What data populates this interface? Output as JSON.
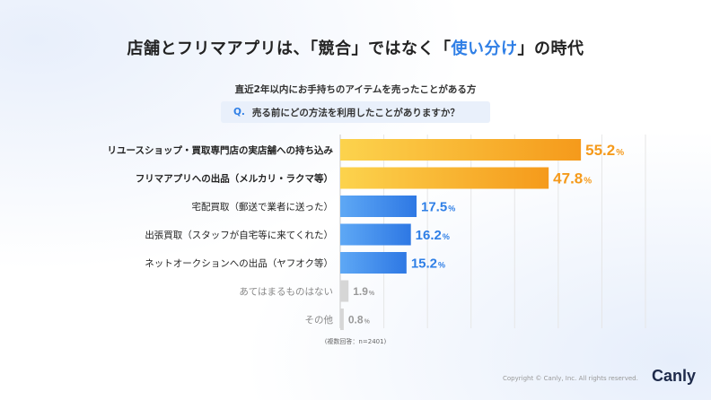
{
  "header": {
    "title_pre": "店舗とフリマアプリは、「競合」ではなく「",
    "title_highlight": "使い分け",
    "title_post": "」の時代",
    "subtitle": "直近2年以内にお手持ちのアイテムを売ったことがある方",
    "question_prefix": "Q.",
    "question": "売る前にどの方法を利用したことがありますか？"
  },
  "chart_data": {
    "type": "bar",
    "orientation": "horizontal",
    "categories": [
      "リユースショップ・買取専門店の実店舗への持ち込み",
      "フリマアプリへの出品（メルカリ・ラクマ等）",
      "宅配買取（郵送で業者に送った）",
      "出張買取（スタッフが自宅等に来てくれた）",
      "ネットオークションへの出品（ヤフオク等）",
      "あてはまるものはない",
      "その他"
    ],
    "values": [
      55.2,
      47.8,
      17.5,
      16.2,
      15.2,
      1.9,
      0.8
    ],
    "value_labels": [
      "55.2",
      "47.8",
      "17.5",
      "16.2",
      "15.2",
      "1.9",
      "0.8"
    ],
    "unit": "%",
    "xlim": [
      0,
      70
    ],
    "grid": true,
    "colors": {
      "top_gradient_start": "#fcd34d",
      "top_gradient_end": "#f59a1b",
      "top_label": "#f59a1b",
      "mid_gradient_start": "#5ea8f5",
      "mid_gradient_end": "#2e78e4",
      "mid_label": "#2f7fe6",
      "low_bar": "#d6d6d6",
      "low_label": "#999999"
    },
    "category_styles": [
      "top",
      "top",
      "mid",
      "mid",
      "mid",
      "low",
      "low"
    ]
  },
  "footer": {
    "note": "(複数回答：n=2401)",
    "copyright": "Copyright © Canly, Inc. All rights reserved.",
    "logo": "Canly"
  }
}
